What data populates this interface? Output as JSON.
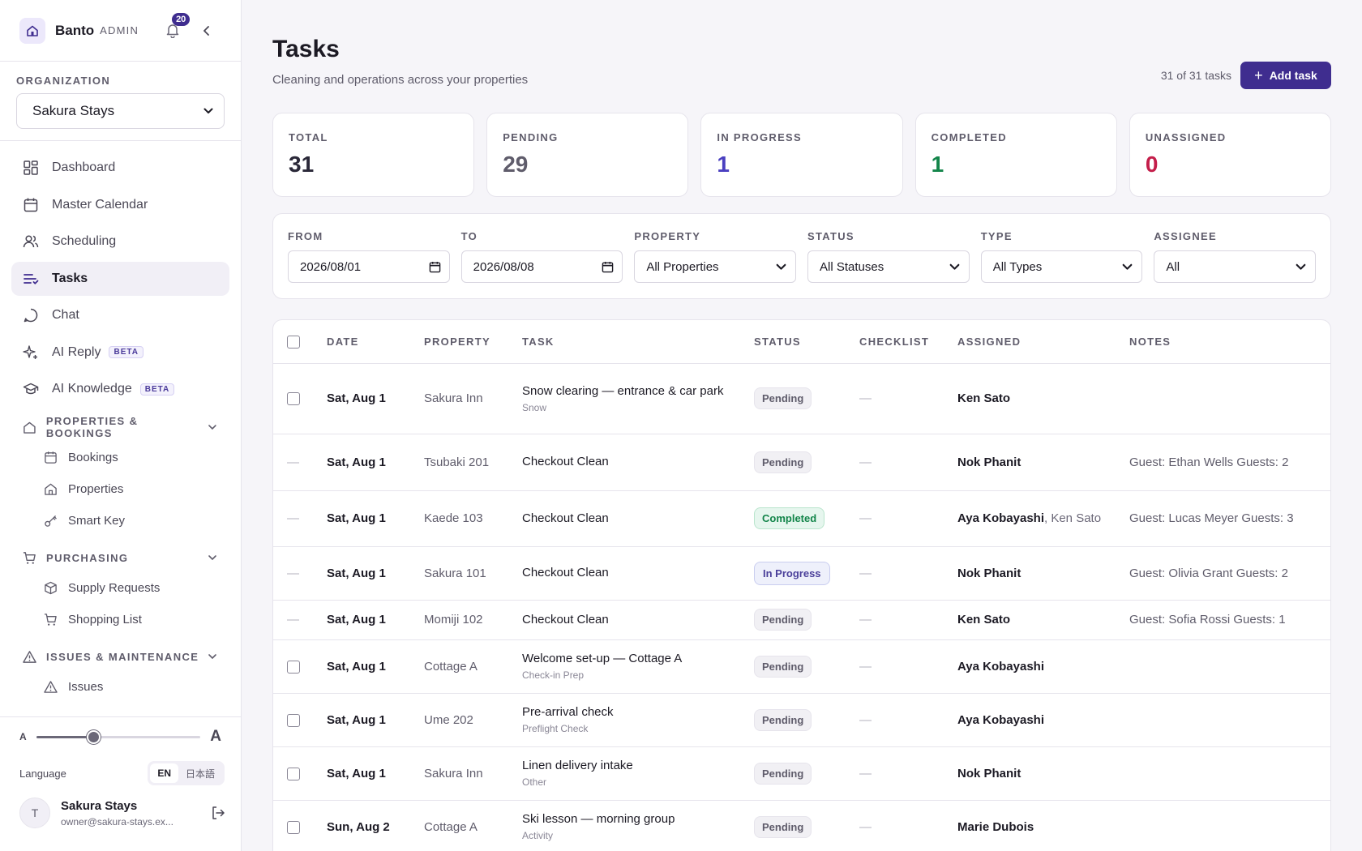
{
  "sidebar": {
    "brand": "Banto",
    "brand_sub": "ADMIN",
    "notification_count": "20",
    "org_label": "ORGANIZATION",
    "org_value": "Sakura Stays",
    "nav": [
      {
        "label": "Dashboard",
        "icon": "dashboard-icon"
      },
      {
        "label": "Master Calendar",
        "icon": "calendar-icon"
      },
      {
        "label": "Scheduling",
        "icon": "users-icon"
      },
      {
        "label": "Tasks",
        "icon": "tasks-icon"
      },
      {
        "label": "Chat",
        "icon": "chat-icon"
      },
      {
        "label": "AI Reply",
        "icon": "sparkle-icon",
        "badge": "BETA"
      },
      {
        "label": "AI Knowledge",
        "icon": "graduation-cap-icon",
        "badge": "BETA"
      }
    ],
    "groups": [
      {
        "label": "PROPERTIES & BOOKINGS",
        "items": [
          "Bookings",
          "Properties",
          "Smart Key"
        ]
      },
      {
        "label": "PURCHASING",
        "items": [
          "Supply Requests",
          "Shopping List"
        ]
      },
      {
        "label": "ISSUES & MAINTENANCE",
        "items": [
          "Issues"
        ]
      }
    ],
    "footer": {
      "font_small": "A",
      "font_large": "A",
      "font_scale_fraction": 0.35,
      "language_label": "Language",
      "lang_en": "EN",
      "lang_ja": "日本語",
      "avatar_initial": "T",
      "user_name": "Sakura Stays",
      "user_email": "owner@sakura-stays.ex..."
    }
  },
  "header": {
    "title": "Tasks",
    "subtitle": "Cleaning and operations across your properties",
    "task_count": "31 of 31 tasks",
    "add_button": "Add task"
  },
  "stats": [
    {
      "label": "TOTAL",
      "value": "31",
      "color": "#2a2838"
    },
    {
      "label": "PENDING",
      "value": "29",
      "color": "#5f5c6b"
    },
    {
      "label": "IN PROGRESS",
      "value": "1",
      "color": "#4a3fc0"
    },
    {
      "label": "COMPLETED",
      "value": "1",
      "color": "#13854a"
    },
    {
      "label": "UNASSIGNED",
      "value": "0",
      "color": "#c41e4a"
    }
  ],
  "filters": {
    "from": {
      "label": "FROM",
      "value": "2026/08/01"
    },
    "to": {
      "label": "TO",
      "value": "2026/08/08"
    },
    "property": {
      "label": "PROPERTY",
      "value": "All Properties"
    },
    "status": {
      "label": "STATUS",
      "value": "All Statuses"
    },
    "type": {
      "label": "TYPE",
      "value": "All Types"
    },
    "assignee": {
      "label": "ASSIGNEE",
      "value": "All"
    }
  },
  "table": {
    "headers": {
      "date": "DATE",
      "property": "PROPERTY",
      "task": "TASK",
      "status": "STATUS",
      "checklist": "CHECKLIST",
      "assigned": "ASSIGNED",
      "notes": "NOTES"
    },
    "rows": [
      {
        "selectable": true,
        "date": "Sat, Aug 1",
        "property": "Sakura Inn",
        "task": "Snow clearing — entrance & car park",
        "type": "Snow",
        "status": "Pending",
        "status_kind": "pending",
        "checklist": "—",
        "assigned": "Ken Sato",
        "assigned_more": "",
        "notes": ""
      },
      {
        "selectable": false,
        "date": "Sat, Aug 1",
        "property": "Tsubaki 201",
        "task": "Checkout Clean",
        "type": "",
        "status": "Pending",
        "status_kind": "pending",
        "checklist": "—",
        "assigned": "Nok Phanit",
        "assigned_more": "",
        "notes": "Guest: Ethan Wells Guests: 2"
      },
      {
        "selectable": false,
        "date": "Sat, Aug 1",
        "property": "Kaede 103",
        "task": "Checkout Clean",
        "type": "",
        "status": "Completed",
        "status_kind": "completed",
        "checklist": "—",
        "assigned": "Aya Kobayashi",
        "assigned_more": ", Ken Sato",
        "notes": "Guest: Lucas Meyer Guests: 3"
      },
      {
        "selectable": false,
        "date": "Sat, Aug 1",
        "property": "Sakura 101",
        "task": "Checkout Clean",
        "type": "",
        "status": "In Progress",
        "status_kind": "inprogress",
        "checklist": "—",
        "assigned": "Nok Phanit",
        "assigned_more": "",
        "notes": "Guest: Olivia Grant Guests: 2"
      },
      {
        "selectable": false,
        "date": "Sat, Aug 1",
        "property": "Momiji 102",
        "task": "Checkout Clean",
        "type": "",
        "status": "Pending",
        "status_kind": "pending",
        "checklist": "—",
        "assigned": "Ken Sato",
        "assigned_more": "",
        "notes": "Guest: Sofia Rossi Guests: 1"
      },
      {
        "selectable": true,
        "date": "Sat, Aug 1",
        "property": "Cottage A",
        "task": "Welcome set-up — Cottage A",
        "type": "Check-in Prep",
        "status": "Pending",
        "status_kind": "pending",
        "checklist": "—",
        "assigned": "Aya Kobayashi",
        "assigned_more": "",
        "notes": ""
      },
      {
        "selectable": true,
        "date": "Sat, Aug 1",
        "property": "Ume 202",
        "task": "Pre-arrival check",
        "type": "Preflight Check",
        "status": "Pending",
        "status_kind": "pending",
        "checklist": "—",
        "assigned": "Aya Kobayashi",
        "assigned_more": "",
        "notes": ""
      },
      {
        "selectable": true,
        "date": "Sat, Aug 1",
        "property": "Sakura Inn",
        "task": "Linen delivery intake",
        "type": "Other",
        "status": "Pending",
        "status_kind": "pending",
        "checklist": "—",
        "assigned": "Nok Phanit",
        "assigned_more": "",
        "notes": ""
      },
      {
        "selectable": true,
        "date": "Sun, Aug 2",
        "property": "Cottage A",
        "task": "Ski lesson — morning group",
        "type": "Activity",
        "status": "Pending",
        "status_kind": "pending",
        "checklist": "—",
        "assigned": "Marie Dubois",
        "assigned_more": "",
        "notes": ""
      }
    ]
  },
  "colors": {
    "accent": "#3f2d8f",
    "background": "#f6f5f9"
  }
}
